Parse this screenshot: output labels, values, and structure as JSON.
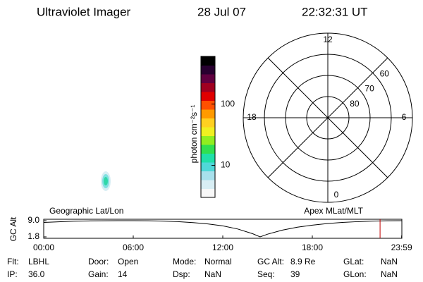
{
  "header": {
    "instrument": "Ultraviolet Imager",
    "date": "28 Jul 07",
    "time": "22:32:31 UT"
  },
  "chart_data": [
    {
      "type": "colorbar",
      "label": "photon cm⁻²s⁻¹",
      "scale": "log",
      "ylim": [
        3,
        600
      ],
      "yticks": [
        10,
        100
      ],
      "colors": [
        "#f8f8f8",
        "#d8eef4",
        "#a8e0ec",
        "#50d8d8",
        "#20e0a8",
        "#30e050",
        "#90ee20",
        "#f0f020",
        "#ffd020",
        "#ff9a00",
        "#ff5000",
        "#e00000",
        "#a00020",
        "#600040",
        "#280030",
        "#000000"
      ]
    },
    {
      "type": "polar",
      "lat_lim": [
        90,
        50
      ],
      "lat_ticks": [
        60,
        70,
        80
      ],
      "mlt_ticks": [
        12,
        18,
        6,
        0
      ]
    },
    {
      "type": "line",
      "title_left": "Geographic Lat/Lon",
      "title_right": "Apex MLat/MLT",
      "ylabel": "GC Alt",
      "color": "#000000",
      "marker_color": "#c00000",
      "marker_x": 22.54,
      "xlim": [
        0,
        24
      ],
      "ylim": [
        1.8,
        9
      ],
      "xticks": [
        {
          "value": 0,
          "label": "00:00"
        },
        {
          "value": 6,
          "label": "06:00"
        },
        {
          "value": 12,
          "label": "12:00"
        },
        {
          "value": 18,
          "label": "18:00"
        },
        {
          "value": 23.983,
          "label": "23:59"
        }
      ],
      "yticks": [
        1.8,
        {
          "value": 9,
          "label": "9.0"
        }
      ],
      "x": [
        0,
        1,
        2,
        3,
        4,
        5,
        6,
        7,
        8,
        9,
        10,
        11,
        12,
        13,
        14,
        14.5,
        15,
        16,
        17,
        18,
        19,
        20,
        21,
        22,
        23,
        24
      ],
      "values": [
        8.2,
        8.5,
        8.75,
        8.9,
        8.98,
        9.0,
        9.0,
        8.95,
        8.8,
        8.55,
        8.15,
        7.55,
        6.7,
        5.3,
        3.2,
        1.8,
        3.0,
        4.8,
        6.1,
        7.0,
        7.7,
        8.2,
        8.55,
        8.8,
        8.95,
        9.0
      ]
    }
  ],
  "info": [
    [
      {
        "label": "Flt:",
        "value": "LBHL"
      },
      {
        "label": "Door:",
        "value": "Open"
      },
      {
        "label": "Mode:",
        "value": "Normal"
      },
      {
        "label": "GC Alt:",
        "value": "8.9 Re"
      },
      {
        "label": "GLat:",
        "value": "NaN"
      }
    ],
    [
      {
        "label": "IP:",
        "value": "36.0"
      },
      {
        "label": "Gain:",
        "value": "14"
      },
      {
        "label": "Dsp:",
        "value": "NaN"
      },
      {
        "label": "Seq:",
        "value": "39"
      },
      {
        "label": "GLon:",
        "value": "NaN"
      }
    ]
  ]
}
